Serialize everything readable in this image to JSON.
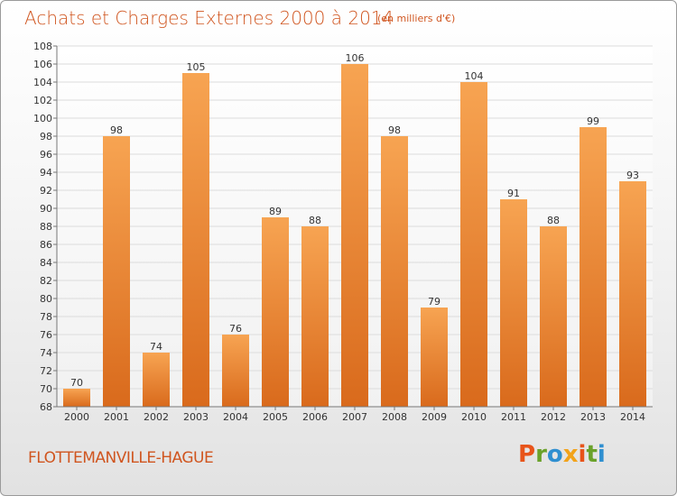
{
  "header": {
    "title": "Achats et Charges Externes 2000 à 2014",
    "subtitle": "(en milliers d'€)"
  },
  "footer": {
    "city": "FLOTTEMANVILLE-HAGUE",
    "logo": "Proxiti"
  },
  "colors": {
    "title": "#d0551f",
    "bar_light": "#f7a452",
    "bar_dark": "#d96a1c",
    "logo_letters": [
      "#e8541a",
      "#6aa22a",
      "#2f8fd0",
      "#f2a31b",
      "#e8541a",
      "#6aa22a",
      "#2f8fd0"
    ]
  },
  "chart_data": {
    "type": "bar",
    "title": "Achats et Charges Externes 2000 à 2014",
    "subtitle": "(en milliers d'€)",
    "categories": [
      "2000",
      "2001",
      "2002",
      "2003",
      "2004",
      "2005",
      "2006",
      "2007",
      "2008",
      "2009",
      "2010",
      "2011",
      "2012",
      "2013",
      "2014"
    ],
    "values": [
      70,
      98,
      74,
      105,
      76,
      89,
      88,
      106,
      98,
      79,
      104,
      91,
      88,
      99,
      93
    ],
    "ylim": [
      68,
      108
    ],
    "yticks": [
      68,
      70,
      72,
      74,
      76,
      78,
      80,
      82,
      84,
      86,
      88,
      90,
      92,
      94,
      96,
      98,
      100,
      102,
      104,
      106,
      108
    ],
    "grid": true,
    "legend": "none"
  }
}
